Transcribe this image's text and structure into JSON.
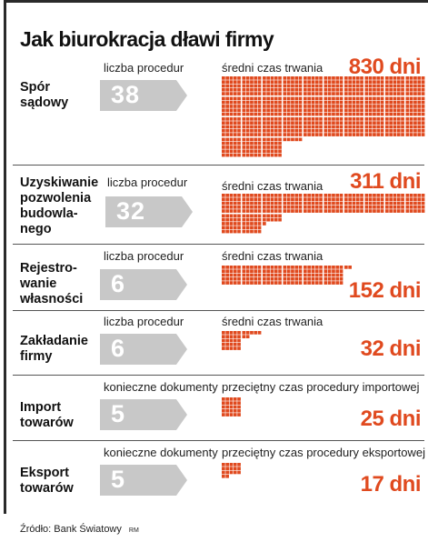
{
  "title": "Jak biurokracja dławi firmy",
  "source": "Źródło: Bank Światowy",
  "credit": "RM",
  "colors": {
    "accent": "#e04a1f",
    "arrow": "#c8c8c8",
    "text": "#111111",
    "frame": "#2a2a2a"
  },
  "chart_data": {
    "type": "table",
    "title": "Jak biurokracja dławi firmy",
    "unit": "dni",
    "rows": [
      {
        "name": "Spór\nsądowy",
        "count_label": "liczba procedur",
        "count": "38",
        "time_label": "średni czas trwania",
        "days": 830,
        "days_text": "830 dni"
      },
      {
        "name": "Uzyskiwanie\npozwolenia\nbudowla-\nnego",
        "count_label": "liczba procedur",
        "count": "32",
        "time_label": "średni czas trwania",
        "days": 311,
        "days_text": "311 dni"
      },
      {
        "name": "Rejestro-\nwanie\nwłasności",
        "count_label": "liczba procedur",
        "count": "6",
        "time_label": "średni czas trwania",
        "days": 152,
        "days_text": "152 dni"
      },
      {
        "name": "Zakładanie\nfirmy",
        "count_label": "liczba procedur",
        "count": "6",
        "time_label": "średni czas trwania",
        "days": 32,
        "days_text": "32 dni"
      },
      {
        "name": "Import\ntowarów",
        "count_label": "konieczne dokumenty",
        "count": "5",
        "time_label": "przeciętny czas procedury importowej",
        "days": 25,
        "days_text": "25 dni"
      },
      {
        "name": "Eksport\ntowarów",
        "count_label": "konieczne dokumenty",
        "count": "5",
        "time_label": "przeciętny czas procedury eksportowej",
        "days": 17,
        "days_text": "17 dni"
      }
    ]
  }
}
